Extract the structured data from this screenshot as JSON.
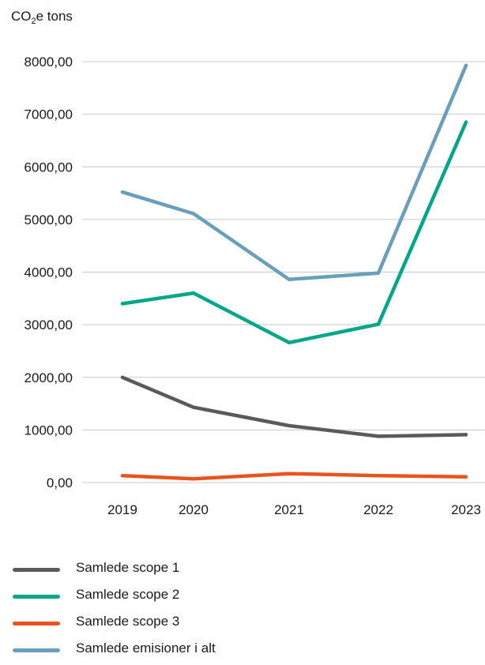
{
  "chart_data": {
    "type": "line",
    "ylabel_main": "CO",
    "ylabel_sub": "2",
    "ylabel_rest": "e tons",
    "ylim": [
      0,
      8000
    ],
    "y_ticks": [
      "0,00",
      "1000,00",
      "2000,00",
      "3000,00",
      "4000,00",
      "5000,00",
      "6000,00",
      "7000,00",
      "8000,00"
    ],
    "y_tick_values": [
      0,
      1000,
      2000,
      3000,
      4000,
      5000,
      6000,
      7000,
      8000
    ],
    "categories": [
      "2019",
      "2020",
      "2021",
      "2022",
      "2023"
    ],
    "grid": true,
    "legend_position": "bottom-left",
    "series": [
      {
        "name": "Samlede scope 1",
        "color": "#5a5a5a",
        "values": [
          2000,
          1430,
          1080,
          880,
          910
        ]
      },
      {
        "name": "Samlede scope 2",
        "color": "#00a888",
        "values": [
          3400,
          3600,
          2660,
          3010,
          6850
        ]
      },
      {
        "name": "Samlede scope 3",
        "color": "#e8541e",
        "values": [
          130,
          70,
          170,
          130,
          110
        ]
      },
      {
        "name": "Samlede emisioner i alt",
        "color": "#6a9fbb",
        "values": [
          5520,
          5110,
          3860,
          3980,
          7930
        ]
      }
    ]
  }
}
